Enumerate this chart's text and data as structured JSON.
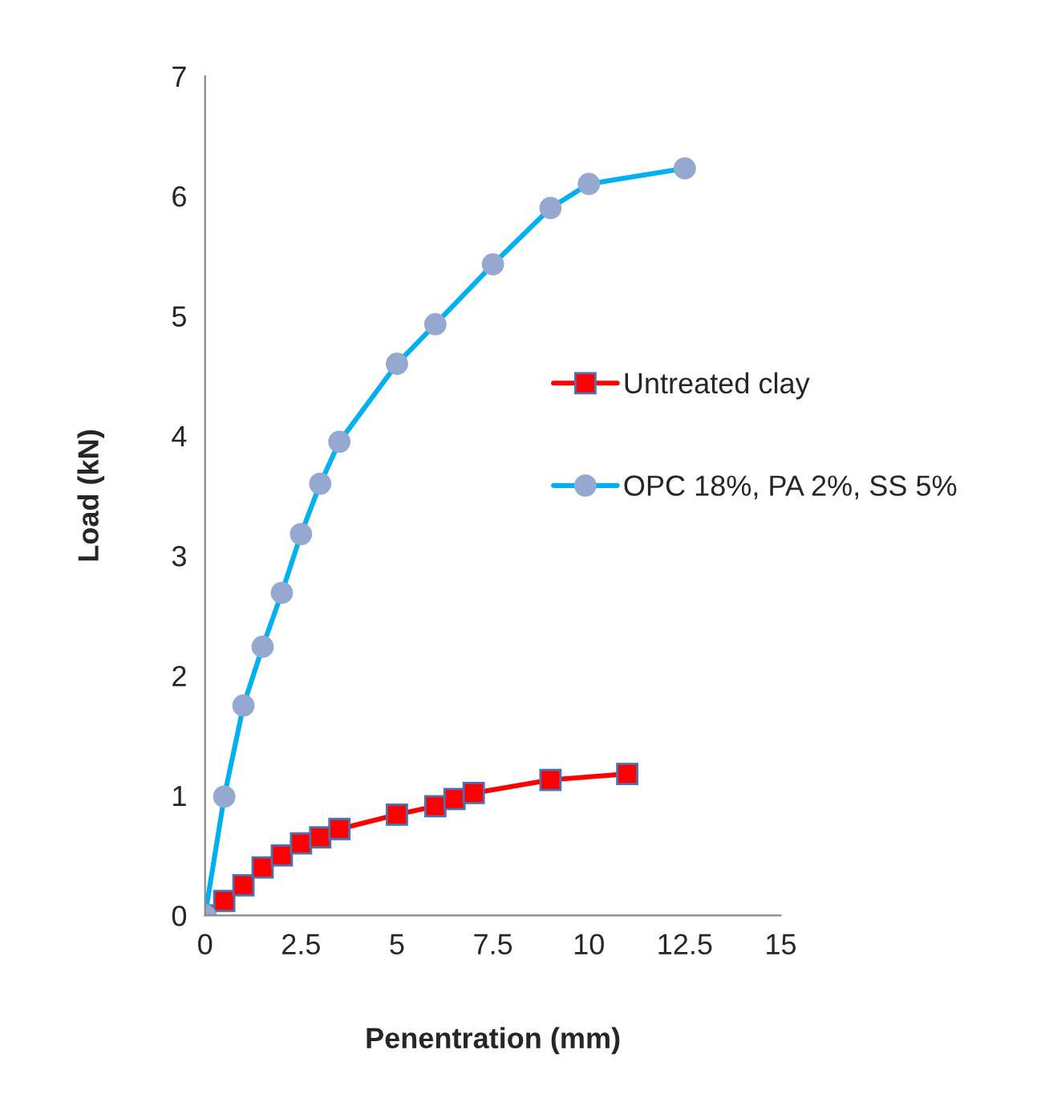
{
  "chart_data": {
    "type": "line",
    "xlabel": "Penentration (mm)",
    "ylabel": "Load (kN)",
    "xlim": [
      0,
      15
    ],
    "xticks": [
      0,
      {
        "value": 2.5,
        "label": "2.5"
      },
      5,
      {
        "value": 7.5,
        "label": "7.5"
      },
      10,
      {
        "value": 12.5,
        "label": "12.5"
      },
      15
    ],
    "ylim": [
      0,
      7
    ],
    "yticks": [
      0,
      1,
      2,
      3,
      4,
      5,
      6,
      7
    ],
    "grid": false,
    "legend": "right",
    "series": [
      {
        "name": "Untreated clay",
        "color": "#ff0000",
        "marker": "square",
        "x": [
          0,
          0.5,
          1,
          1.5,
          2,
          2.5,
          3,
          3.5,
          5,
          6,
          6.5,
          7,
          9,
          11
        ],
        "values": [
          0,
          0.12,
          0.25,
          0.4,
          0.5,
          0.6,
          0.65,
          0.72,
          0.84,
          0.91,
          0.97,
          1.02,
          1.13,
          1.18
        ]
      },
      {
        "name": "OPC 18%, PA 2%, SS 5%",
        "color": "#00b0f0",
        "marker": "circle",
        "x": [
          0,
          0.5,
          1,
          1.5,
          2,
          2.5,
          3,
          3.5,
          5,
          6,
          7.5,
          9,
          10,
          12.5
        ],
        "values": [
          0,
          0.99,
          1.75,
          2.24,
          2.69,
          3.18,
          3.6,
          3.95,
          4.6,
          4.93,
          5.43,
          5.9,
          6.1,
          6.23
        ]
      }
    ]
  }
}
